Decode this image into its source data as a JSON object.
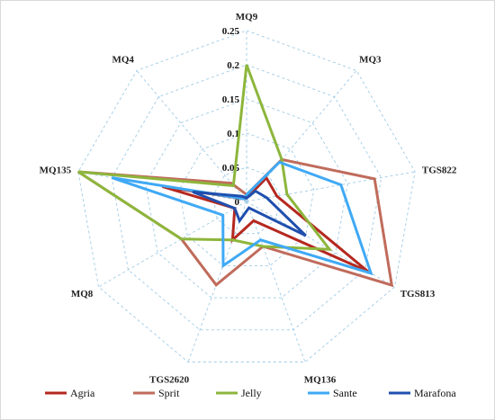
{
  "chart_data": {
    "type": "radar",
    "axes": [
      "MQ9",
      "MQ3",
      "TGS822",
      "TGS813",
      "MQ136",
      "TGS2620",
      "MQ8",
      "MQ135",
      "MQ4"
    ],
    "rlim": [
      0,
      0.25
    ],
    "ticks": [
      0,
      0.05,
      0.1,
      0.15,
      0.2,
      0.25
    ],
    "tick_labels": [
      "0",
      "0.05",
      "0.1",
      "0.15",
      "0.2",
      "0.25"
    ],
    "grid": true,
    "legend_position": "bottom",
    "series": [
      {
        "name": "Agria",
        "color": "#b5281f",
        "values": [
          0.005,
          0.045,
          0.045,
          0.205,
          0.03,
          0.06,
          0.02,
          0.125,
          0.005
        ]
      },
      {
        "name": "Sprit",
        "color": "#c06b5b",
        "values": [
          0.01,
          0.08,
          0.19,
          0.245,
          0.07,
          0.13,
          0.11,
          0.25,
          0.035
        ]
      },
      {
        "name": "Jelly",
        "color": "#8db63c",
        "values": [
          0.2,
          0.08,
          0.06,
          0.14,
          0.07,
          0.06,
          0.11,
          0.25,
          0.03
        ]
      },
      {
        "name": "Sante",
        "color": "#3fa9f5",
        "values": [
          0.01,
          0.075,
          0.14,
          0.21,
          0.06,
          0.1,
          0.04,
          0.2,
          0.005
        ]
      },
      {
        "name": "Marafona",
        "color": "#1f4fae",
        "values": [
          0.005,
          0.02,
          0.03,
          0.1,
          0.01,
          0.03,
          0.02,
          0.08,
          0.01
        ]
      }
    ]
  }
}
